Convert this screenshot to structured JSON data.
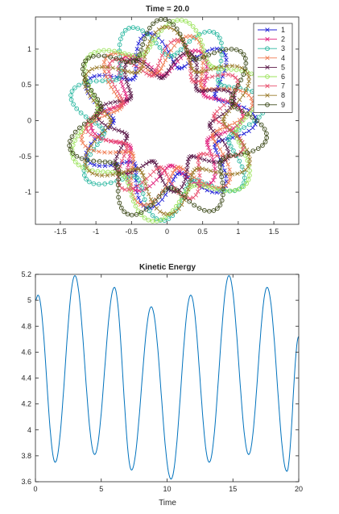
{
  "chart_data": [
    {
      "type": "line",
      "title": "Time = 20.0",
      "xlabel": "",
      "ylabel": "",
      "xlim": [
        -1.85,
        1.85
      ],
      "ylim": [
        -1.45,
        1.45
      ],
      "xticks": [
        -1.5,
        -1,
        -0.5,
        0,
        0.5,
        1,
        1.5
      ],
      "yticks": [
        -1,
        -0.5,
        0,
        0.5,
        1
      ],
      "xtick_labels": [
        "-1.5",
        "-1",
        "-0.5",
        "0",
        "0.5",
        "1",
        "1.5"
      ],
      "ytick_labels": [
        "-1",
        "-0.5",
        "0",
        "0.5",
        "1"
      ],
      "legend_position": "top-right",
      "grid": false,
      "series": [
        {
          "name": "1",
          "color": "#1f1fd6",
          "marker": "x",
          "trajectory": {
            "r0": 1.0,
            "amp": 0.25,
            "lobes": 7,
            "phase": 0.0
          }
        },
        {
          "name": "2",
          "color": "#e0237e",
          "marker": "x",
          "trajectory": {
            "r0": 0.85,
            "amp": 0.22,
            "lobes": 6,
            "phase": 0.6
          }
        },
        {
          "name": "3",
          "color": "#2ab7a0",
          "marker": "o",
          "trajectory": {
            "r0": 1.15,
            "amp": 0.25,
            "lobes": 7,
            "phase": 1.1
          }
        },
        {
          "name": "4",
          "color": "#f07b50",
          "marker": "x",
          "trajectory": {
            "r0": 0.95,
            "amp": 0.28,
            "lobes": 6,
            "phase": 1.7
          }
        },
        {
          "name": "5",
          "color": "#5b1a4a",
          "marker": "x",
          "trajectory": {
            "r0": 0.8,
            "amp": 0.2,
            "lobes": 7,
            "phase": 2.2
          }
        },
        {
          "name": "6",
          "color": "#9be35a",
          "marker": "o",
          "trajectory": {
            "r0": 1.2,
            "amp": 0.22,
            "lobes": 6,
            "phase": 2.8
          }
        },
        {
          "name": "7",
          "color": "#e8506e",
          "marker": "x",
          "trajectory": {
            "r0": 0.9,
            "amp": 0.24,
            "lobes": 7,
            "phase": 3.4
          }
        },
        {
          "name": "8",
          "color": "#9a7a2a",
          "marker": "x",
          "trajectory": {
            "r0": 1.05,
            "amp": 0.26,
            "lobes": 6,
            "phase": 4.0
          }
        },
        {
          "name": "9",
          "color": "#3d4a1a",
          "marker": "o",
          "trajectory": {
            "r0": 1.18,
            "amp": 0.24,
            "lobes": 7,
            "phase": 4.6
          }
        }
      ]
    },
    {
      "type": "line",
      "title": "Kinetic Energy",
      "xlabel": "Time",
      "ylabel": "",
      "xlim": [
        0,
        20
      ],
      "ylim": [
        3.6,
        5.2
      ],
      "xticks": [
        0,
        5,
        10,
        15,
        20
      ],
      "yticks": [
        3.6,
        3.8,
        4.0,
        4.2,
        4.4,
        4.6,
        4.8,
        5.0,
        5.2
      ],
      "xtick_labels": [
        "0",
        "5",
        "10",
        "15",
        "20"
      ],
      "ytick_labels": [
        "3.6",
        "3.8",
        "4",
        "4.2",
        "4.4",
        "4.6",
        "4.8",
        "5",
        "5.2"
      ],
      "grid": false,
      "series": [
        {
          "name": "",
          "color": "#0072bd",
          "extrema": {
            "x": [
              0,
              0.2,
              1.5,
              3.0,
              4.5,
              6.0,
              7.3,
              8.8,
              10.3,
              11.8,
              13.2,
              14.7,
              16.2,
              17.6,
              19.1,
              20
            ],
            "y": [
              5.0,
              5.04,
              3.75,
              5.19,
              3.81,
              5.1,
              3.69,
              4.95,
              3.62,
              5.04,
              3.75,
              5.19,
              3.81,
              5.1,
              3.68,
              4.72
            ]
          }
        }
      ]
    }
  ]
}
